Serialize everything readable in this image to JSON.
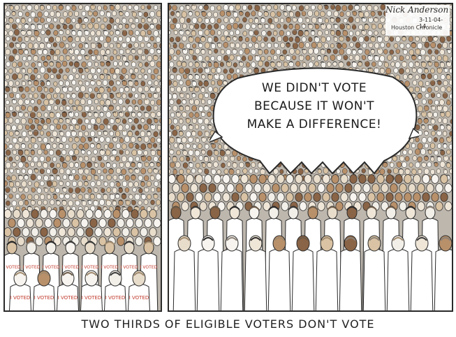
{
  "speech_bubble": {
    "lines": [
      "WE DIDN'T VOTE",
      "BECAUSE IT WON'T",
      "MAKE A DIFFERENCE!"
    ]
  },
  "signature": {
    "name": "Nick Anderson",
    "date": "3-11-04-14",
    "paper": "Houston Chronicle"
  },
  "shirt_label": "I VOTED",
  "caption": "TWO THIRDS OF ELIGIBLE VOTERS DON'T VOTE",
  "colors": {
    "crowd_base": "#bdb7ae",
    "outline": "#2a2a2a",
    "shirt": "#ffffff",
    "shirt_text": "#c0392b",
    "paper": "#ffffff"
  }
}
